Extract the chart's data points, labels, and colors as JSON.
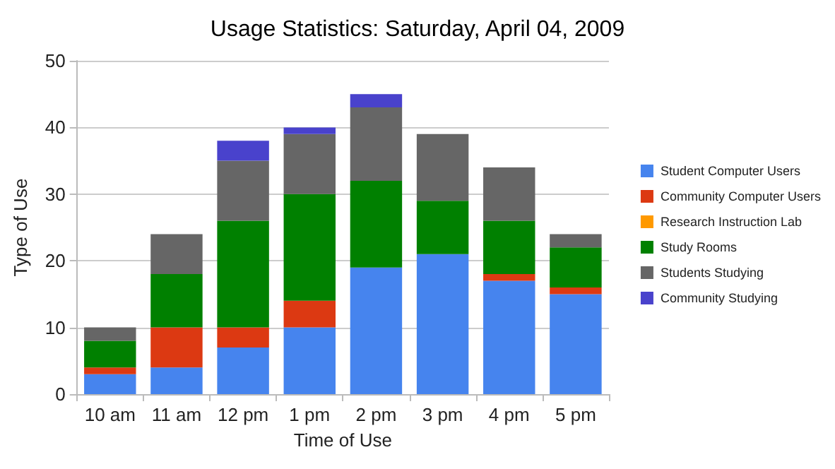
{
  "chart_data": {
    "type": "bar",
    "title": "Usage Statistics: Saturday, April 04, 2009",
    "xlabel": "Time of Use",
    "ylabel": "Type of Use",
    "categories": [
      "10 am",
      "11 am",
      "12 pm",
      "1 pm",
      "2 pm",
      "3 pm",
      "4 pm",
      "5 pm"
    ],
    "stacked": true,
    "series": [
      {
        "name": "Student Computer Users",
        "color": "#4684ee",
        "values": [
          3,
          4,
          7,
          10,
          19,
          21,
          17,
          15
        ]
      },
      {
        "name": "Community Computer Users",
        "color": "#dc3912",
        "values": [
          1,
          6,
          3,
          4,
          0,
          0,
          1,
          1
        ]
      },
      {
        "name": "Research Instruction Lab",
        "color": "#ff9900",
        "values": [
          0,
          0,
          0,
          0,
          0,
          0,
          0,
          0
        ]
      },
      {
        "name": "Study Rooms",
        "color": "#008000",
        "values": [
          4,
          8,
          16,
          16,
          13,
          8,
          8,
          6
        ]
      },
      {
        "name": "Students Studying",
        "color": "#666666",
        "values": [
          2,
          6,
          9,
          9,
          11,
          10,
          8,
          2
        ]
      },
      {
        "name": "Community Studying",
        "color": "#4942cc",
        "values": [
          0,
          0,
          3,
          1,
          2,
          0,
          0,
          0
        ]
      }
    ],
    "ylim": [
      0,
      50
    ],
    "yticks": [
      0,
      10,
      20,
      30,
      40,
      50
    ],
    "grid": "y",
    "legend": "right"
  }
}
